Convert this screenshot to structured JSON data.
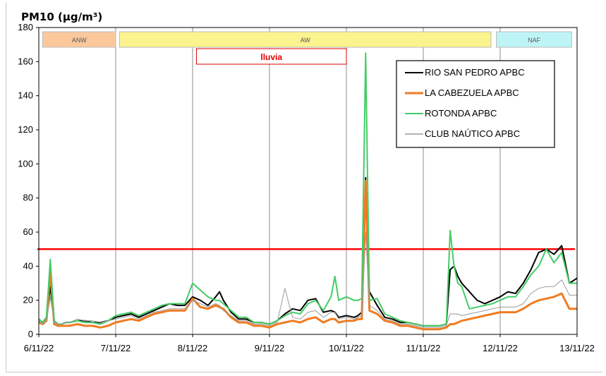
{
  "chart_data": {
    "type": "line",
    "title": "PM10 (µg/m³)",
    "xlabel": "",
    "ylabel": "",
    "ylim": [
      0,
      180
    ],
    "yticks": [
      0,
      20,
      40,
      60,
      80,
      100,
      120,
      140,
      160,
      180
    ],
    "xticks": [
      "6/11/22",
      "7/11/22",
      "8/11/22",
      "9/11/22",
      "10/11/22",
      "11/11/22",
      "12/11/22",
      "13/11/22"
    ],
    "xlim_days": [
      0,
      7
    ],
    "grid": "vertical lines at each day",
    "limit_line": {
      "value": 50,
      "color": "#ff0000"
    },
    "periods": [
      {
        "label": "ANW",
        "start": 0.05,
        "end": 1.0,
        "color": "#fbc89c"
      },
      {
        "label": "AW",
        "start": 1.05,
        "end": 5.88,
        "color": "#faf38e"
      },
      {
        "label": "NAF",
        "start": 5.95,
        "end": 6.93,
        "color": "#bff4f6"
      }
    ],
    "rain": {
      "label": "lluvia",
      "start": 2.05,
      "end": 4.0,
      "color": "#e00000"
    },
    "legend_position": "top-right",
    "x": [
      0,
      0.05,
      0.1,
      0.15,
      0.2,
      0.25,
      0.3,
      0.35,
      0.4,
      0.5,
      0.6,
      0.7,
      0.8,
      0.9,
      1.0,
      1.1,
      1.2,
      1.3,
      1.4,
      1.5,
      1.6,
      1.7,
      1.8,
      1.9,
      2.0,
      2.1,
      2.2,
      2.3,
      2.35,
      2.4,
      2.5,
      2.6,
      2.7,
      2.8,
      2.9,
      3.0,
      3.1,
      3.2,
      3.3,
      3.4,
      3.5,
      3.6,
      3.7,
      3.8,
      3.85,
      3.9,
      4.0,
      4.1,
      4.15,
      4.2,
      4.25,
      4.3,
      4.4,
      4.5,
      4.6,
      4.7,
      4.8,
      4.9,
      5.0,
      5.1,
      5.2,
      5.3,
      5.35,
      5.4,
      5.45,
      5.5,
      5.6,
      5.7,
      5.8,
      5.9,
      6.0,
      6.1,
      6.2,
      6.3,
      6.4,
      6.5,
      6.6,
      6.7,
      6.8,
      6.9,
      7.0
    ],
    "series": [
      {
        "name": "RIO SAN PEDRO APBC",
        "color": "#000000",
        "width": 2,
        "values": [
          9,
          7,
          10,
          28,
          8,
          6,
          6,
          7,
          7,
          8,
          8,
          7,
          7,
          8,
          10,
          11,
          12,
          10,
          12,
          14,
          16,
          18,
          17,
          17,
          22,
          20,
          17,
          22,
          25,
          20,
          13,
          9,
          9,
          7,
          7,
          6,
          8,
          12,
          15,
          14,
          20,
          21,
          13,
          14,
          13,
          10,
          11,
          10,
          11,
          13,
          92,
          25,
          17,
          10,
          9,
          7,
          7,
          6,
          5,
          5,
          5,
          6,
          38,
          40,
          34,
          30,
          25,
          20,
          18,
          20,
          22,
          25,
          24,
          30,
          38,
          48,
          50,
          47,
          52,
          30,
          33
        ]
      },
      {
        "name": "LA CABEZUELA  APBC",
        "color": "#f07b20",
        "width": 3,
        "values": [
          7,
          6,
          8,
          38,
          6,
          5,
          5,
          5,
          5,
          6,
          5,
          5,
          4,
          5,
          7,
          8,
          9,
          8,
          10,
          12,
          13,
          14,
          14,
          14,
          21,
          16,
          15,
          17,
          16,
          15,
          10,
          7,
          7,
          5,
          5,
          4,
          6,
          7,
          8,
          7,
          9,
          10,
          7,
          9,
          9,
          7,
          8,
          8,
          9,
          9,
          90,
          14,
          12,
          8,
          7,
          5,
          5,
          4,
          3,
          3,
          3,
          4,
          6,
          6,
          7,
          8,
          9,
          10,
          11,
          12,
          13,
          13,
          13,
          15,
          18,
          20,
          21,
          22,
          24,
          15,
          15
        ]
      },
      {
        "name": "ROTONDA  APBC",
        "color": "#44cc66",
        "width": 2,
        "values": [
          9,
          7,
          10,
          44,
          8,
          6,
          6,
          7,
          7,
          8,
          7,
          7,
          6,
          8,
          11,
          12,
          13,
          11,
          13,
          15,
          17,
          18,
          18,
          18,
          30,
          26,
          22,
          20,
          20,
          18,
          14,
          10,
          10,
          7,
          7,
          6,
          8,
          11,
          13,
          12,
          18,
          20,
          14,
          22,
          34,
          20,
          22,
          20,
          20,
          21,
          165,
          20,
          21,
          12,
          10,
          8,
          7,
          6,
          5,
          5,
          5,
          6,
          61,
          40,
          30,
          28,
          15,
          16,
          17,
          18,
          20,
          22,
          22,
          28,
          35,
          40,
          50,
          42,
          48,
          30,
          30
        ]
      },
      {
        "name": "CLUB NAÚTICO  APBC",
        "color": "#9a9a9a",
        "width": 1,
        "values": [
          8,
          6,
          8,
          22,
          7,
          6,
          6,
          7,
          7,
          9,
          8,
          8,
          7,
          8,
          9,
          10,
          11,
          9,
          11,
          13,
          14,
          15,
          15,
          15,
          20,
          18,
          16,
          18,
          17,
          14,
          11,
          8,
          8,
          6,
          6,
          5,
          7,
          27,
          10,
          9,
          13,
          14,
          10,
          13,
          13,
          9,
          10,
          9,
          10,
          11,
          60,
          17,
          14,
          9,
          8,
          6,
          6,
          5,
          4,
          4,
          4,
          5,
          12,
          12,
          12,
          11,
          12,
          13,
          14,
          15,
          16,
          16,
          16,
          18,
          24,
          27,
          28,
          28,
          32,
          23,
          23
        ]
      }
    ]
  }
}
